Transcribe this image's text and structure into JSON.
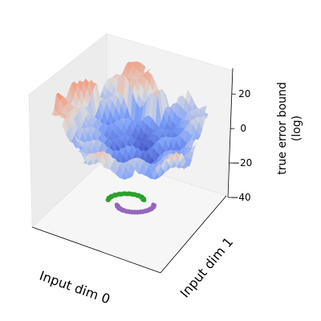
{
  "chart_data": {
    "type": "surface3d",
    "xlabel": "Input dim 0",
    "ylabel": "Input dim 1",
    "zlabel_line1": "true error bound",
    "zlabel_line2": "(log)",
    "zticks": [
      20,
      0,
      -20,
      -40
    ],
    "zlim": [
      -40,
      35
    ],
    "grid": false,
    "colormap": "coolwarm",
    "colors": {
      "low": "#3b4cc0",
      "mid": "#dddcdc",
      "high": "#b40426",
      "pane_back": "#f2f2f2",
      "pane_floor": "#f7f7f7",
      "cluster_a": "#2ca02c",
      "cluster_b": "#9467bd"
    },
    "scatter_clusters": [
      {
        "color": "#2ca02c",
        "shape": "upper arc of two-moons",
        "location": "floor, z = -40"
      },
      {
        "color": "#9467bd",
        "shape": "lower arc of two-moons",
        "location": "floor, z = -40"
      }
    ],
    "surface_summary": {
      "center_valley_min": -8,
      "rim_peaks_max": 33,
      "description": "bowl-shaped surface, blue low basin in the middle rising to red ridges along the back and left edges"
    }
  }
}
